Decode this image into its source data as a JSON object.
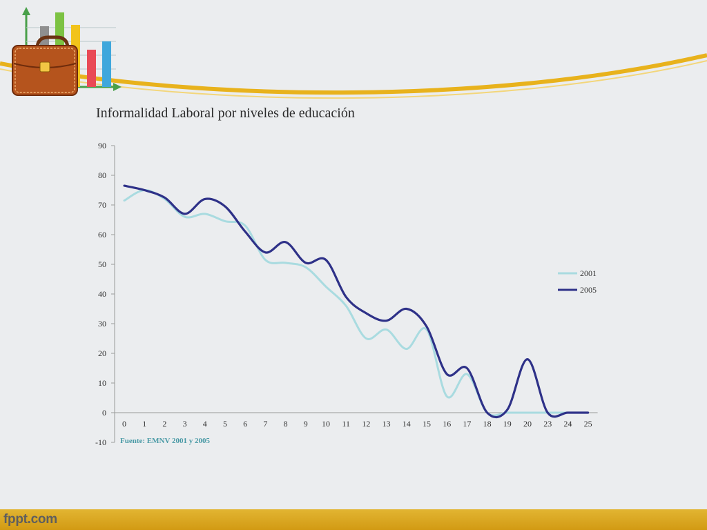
{
  "slide": {
    "title": "Informalidad Laboral por niveles de educación",
    "source_note": "Fuente: EMNV 2001 y 2005",
    "footer_brand": "fppt.com",
    "accent_color": "#e8b21c"
  },
  "chart_data": {
    "type": "line",
    "title": "",
    "xlabel": "",
    "ylabel": "",
    "categories": [
      "0",
      "1",
      "2",
      "3",
      "4",
      "5",
      "6",
      "7",
      "8",
      "9",
      "10",
      "11",
      "12",
      "13",
      "14",
      "15",
      "16",
      "17",
      "18",
      "19",
      "20",
      "23",
      "24",
      "25"
    ],
    "y_ticks": [
      90,
      80,
      70,
      60,
      50,
      40,
      30,
      20,
      10,
      0,
      -10
    ],
    "ylim": [
      -10,
      90
    ],
    "grid": false,
    "legend": "right",
    "smooth": true,
    "series": [
      {
        "name": "2001",
        "color": "#a9dbe0",
        "values": [
          71.5,
          75,
          72,
          66,
          67,
          64.5,
          63,
          51.5,
          50.5,
          49,
          42.5,
          36,
          25,
          28,
          21.5,
          28,
          5.5,
          13,
          0,
          0,
          0,
          0,
          0,
          0
        ]
      },
      {
        "name": "2005",
        "color": "#2e3188",
        "values": [
          76.5,
          75,
          72.5,
          67,
          72,
          69.5,
          61,
          54,
          57.5,
          50.5,
          51.5,
          39,
          33.5,
          31,
          35,
          29,
          13,
          15,
          0,
          1,
          18,
          0,
          0,
          0
        ]
      }
    ]
  }
}
